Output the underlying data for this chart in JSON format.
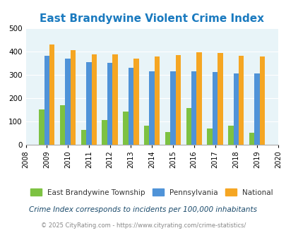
{
  "title": "East Brandywine Violent Crime Index",
  "years": [
    2009,
    2010,
    2011,
    2012,
    2013,
    2014,
    2015,
    2016,
    2017,
    2018,
    2019
  ],
  "east_brandywine": [
    150,
    170,
    62,
    105,
    140,
    80,
    53,
    155,
    70,
    82,
    50
  ],
  "pennsylvania": [
    380,
    367,
    353,
    350,
    328,
    315,
    315,
    315,
    312,
    306,
    306
  ],
  "national": [
    430,
    405,
    387,
    387,
    367,
    378,
    384,
    397,
    394,
    381,
    379
  ],
  "colors": {
    "east_brandywine": "#7dc242",
    "pennsylvania": "#4f93d8",
    "national": "#f5a623"
  },
  "xlim": [
    2008,
    2020
  ],
  "ylim": [
    0,
    500
  ],
  "yticks": [
    0,
    100,
    200,
    300,
    400,
    500
  ],
  "background_color": "#e8f4f8",
  "title_color": "#1a7abf",
  "legend_labels": [
    "East Brandywine Township",
    "Pennsylvania",
    "National"
  ],
  "footnote1": "Crime Index corresponds to incidents per 100,000 inhabitants",
  "footnote2": "© 2025 CityRating.com - https://www.cityrating.com/crime-statistics/",
  "bar_width": 0.25
}
